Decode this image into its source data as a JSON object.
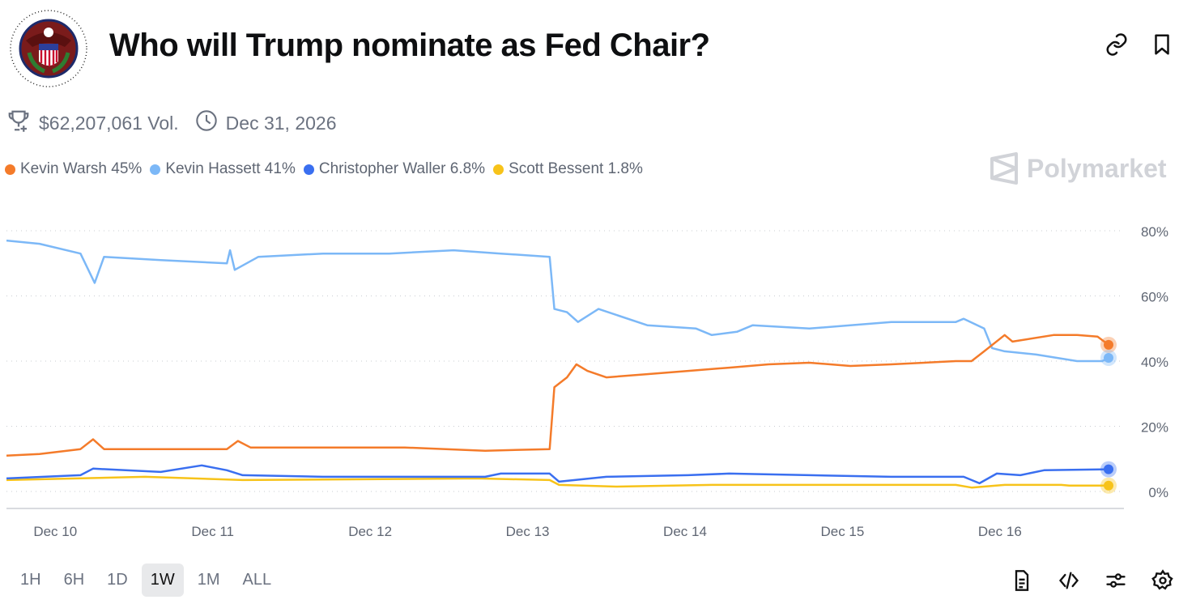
{
  "header": {
    "title": "Who will Trump nominate as Fed Chair?",
    "logo_text": "BOARD OF GOVERNORS OF THE FEDERAL RESERVE SYSTEM"
  },
  "meta": {
    "volume": "$62,207,061 Vol.",
    "end_date": "Dec 31, 2026"
  },
  "brand": "Polymarket",
  "ranges": [
    "1H",
    "6H",
    "1D",
    "1W",
    "1M",
    "ALL"
  ],
  "active_range": "1W",
  "colors": {
    "warsh": "#f47b2a",
    "hassett": "#7cb8f7",
    "waller": "#3a6ff0",
    "bessent": "#f7c31a"
  },
  "chart_data": {
    "type": "line",
    "title": "Who will Trump nominate as Fed Chair?",
    "xlabel": "",
    "ylabel": "",
    "x_unit": "days since Dec 10",
    "xlim": [
      -0.31,
      6.69
    ],
    "ylim": [
      0,
      80
    ],
    "x_ticks": [
      {
        "x": 0,
        "label": "Dec 10"
      },
      {
        "x": 1,
        "label": "Dec 11"
      },
      {
        "x": 2,
        "label": "Dec 12"
      },
      {
        "x": 3,
        "label": "Dec 13"
      },
      {
        "x": 4,
        "label": "Dec 14"
      },
      {
        "x": 5,
        "label": "Dec 15"
      },
      {
        "x": 6,
        "label": "Dec 16"
      }
    ],
    "y_ticks": [
      {
        "y": 0,
        "label": "0%"
      },
      {
        "y": 20,
        "label": "20%"
      },
      {
        "y": 40,
        "label": "40%"
      },
      {
        "y": 60,
        "label": "60%"
      },
      {
        "y": 80,
        "label": "80%"
      }
    ],
    "grid": true,
    "legend": "top-left",
    "series": [
      {
        "key": "warsh",
        "name": "Kevin Warsh",
        "label": "Kevin Warsh 45%",
        "color": "#f47b2a",
        "points": [
          [
            -0.31,
            11
          ],
          [
            -0.1,
            11.5
          ],
          [
            0.16,
            13
          ],
          [
            0.24,
            16
          ],
          [
            0.31,
            13
          ],
          [
            0.67,
            13
          ],
          [
            1.09,
            13
          ],
          [
            1.16,
            15.5
          ],
          [
            1.24,
            13.5
          ],
          [
            1.7,
            13.5
          ],
          [
            2.22,
            13.5
          ],
          [
            2.73,
            12.5
          ],
          [
            3.14,
            13
          ],
          [
            3.17,
            32
          ],
          [
            3.25,
            35
          ],
          [
            3.31,
            39
          ],
          [
            3.38,
            37
          ],
          [
            3.5,
            35
          ],
          [
            3.76,
            36
          ],
          [
            4.02,
            37
          ],
          [
            4.28,
            38
          ],
          [
            4.53,
            39
          ],
          [
            4.79,
            39.5
          ],
          [
            5.05,
            38.5
          ],
          [
            5.31,
            39
          ],
          [
            5.72,
            40
          ],
          [
            5.82,
            40
          ],
          [
            5.9,
            43
          ],
          [
            6.03,
            48
          ],
          [
            6.08,
            46
          ],
          [
            6.34,
            48
          ],
          [
            6.49,
            48
          ],
          [
            6.62,
            47.5
          ],
          [
            6.69,
            45
          ]
        ]
      },
      {
        "key": "hassett",
        "name": "Kevin Hassett",
        "label": "Kevin Hassett 41%",
        "color": "#7cb8f7",
        "points": [
          [
            -0.31,
            77
          ],
          [
            -0.1,
            76
          ],
          [
            0.16,
            73
          ],
          [
            0.25,
            64
          ],
          [
            0.31,
            72
          ],
          [
            0.67,
            71
          ],
          [
            1.09,
            70
          ],
          [
            1.11,
            74
          ],
          [
            1.14,
            68
          ],
          [
            1.29,
            72
          ],
          [
            1.7,
            73
          ],
          [
            2.12,
            73
          ],
          [
            2.53,
            74
          ],
          [
            2.83,
            73
          ],
          [
            3.14,
            72
          ],
          [
            3.17,
            56
          ],
          [
            3.25,
            55
          ],
          [
            3.32,
            52
          ],
          [
            3.45,
            56
          ],
          [
            3.76,
            51
          ],
          [
            4.07,
            50
          ],
          [
            4.17,
            48
          ],
          [
            4.33,
            49
          ],
          [
            4.43,
            51
          ],
          [
            4.79,
            50
          ],
          [
            5.05,
            51
          ],
          [
            5.31,
            52
          ],
          [
            5.72,
            52
          ],
          [
            5.77,
            53
          ],
          [
            5.9,
            50
          ],
          [
            5.95,
            44
          ],
          [
            6.03,
            43
          ],
          [
            6.23,
            42
          ],
          [
            6.49,
            40
          ],
          [
            6.65,
            40
          ],
          [
            6.69,
            41
          ]
        ]
      },
      {
        "key": "waller",
        "name": "Christopher Waller",
        "label": "Christopher Waller 6.8%",
        "color": "#3a6ff0",
        "points": [
          [
            -0.31,
            4
          ],
          [
            0.16,
            5
          ],
          [
            0.24,
            7
          ],
          [
            0.67,
            6
          ],
          [
            0.93,
            8
          ],
          [
            1.09,
            6.5
          ],
          [
            1.19,
            5
          ],
          [
            1.7,
            4.5
          ],
          [
            2.73,
            4.5
          ],
          [
            2.83,
            5.5
          ],
          [
            3.14,
            5.5
          ],
          [
            3.2,
            3
          ],
          [
            3.5,
            4.5
          ],
          [
            4.02,
            5
          ],
          [
            4.28,
            5.5
          ],
          [
            4.79,
            5
          ],
          [
            5.31,
            4.5
          ],
          [
            5.77,
            4.5
          ],
          [
            5.87,
            2.5
          ],
          [
            5.98,
            5.5
          ],
          [
            6.13,
            5
          ],
          [
            6.28,
            6.5
          ],
          [
            6.69,
            6.8
          ]
        ]
      },
      {
        "key": "bessent",
        "name": "Scott Bessent",
        "label": "Scott Bessent 1.8%",
        "color": "#f7c31a",
        "points": [
          [
            -0.31,
            3.5
          ],
          [
            0.57,
            4.5
          ],
          [
            1.19,
            3.5
          ],
          [
            2.68,
            4
          ],
          [
            3.14,
            3.5
          ],
          [
            3.2,
            2
          ],
          [
            3.56,
            1.5
          ],
          [
            4.17,
            2
          ],
          [
            4.79,
            2
          ],
          [
            5.72,
            2
          ],
          [
            5.82,
            1.2
          ],
          [
            6.03,
            2
          ],
          [
            6.39,
            2
          ],
          [
            6.44,
            1.8
          ],
          [
            6.69,
            1.8
          ]
        ]
      }
    ]
  }
}
